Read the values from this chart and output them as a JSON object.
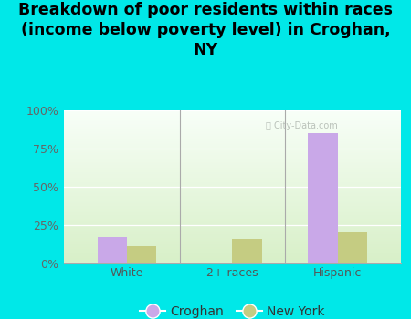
{
  "title": "Breakdown of poor residents within races\n(income below poverty level) in Croghan,\nNY",
  "categories": [
    "White",
    "2+ races",
    "Hispanic"
  ],
  "croghan_values": [
    17,
    0,
    85
  ],
  "newyork_values": [
    11,
    16,
    20
  ],
  "croghan_color": "#c9a8e8",
  "newyork_color": "#c5cc82",
  "background_color": "#00e8e8",
  "plot_bg_top": "#e8f5e0",
  "plot_bg_bottom": "#f8fff4",
  "yticks": [
    0,
    25,
    50,
    75,
    100
  ],
  "ytick_labels": [
    "0%",
    "25%",
    "50%",
    "75%",
    "100%"
  ],
  "bar_width": 0.28,
  "title_fontsize": 12.5,
  "tick_fontsize": 9,
  "legend_fontsize": 10
}
